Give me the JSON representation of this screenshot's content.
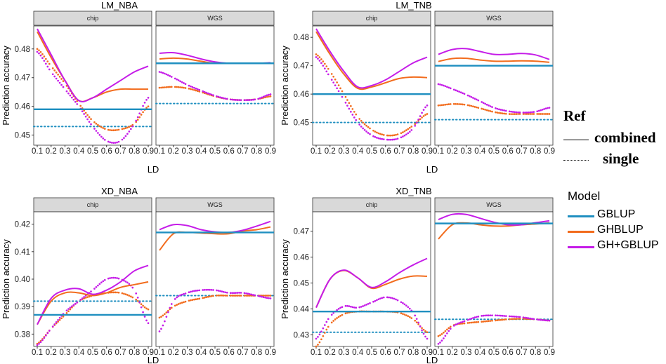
{
  "chart_data": {
    "type": "line",
    "xlabel": "LD",
    "ylabel": "Prediction accuracy",
    "x_ticks": [
      "0.1",
      "0.2",
      "0.3",
      "0.4",
      "0.5",
      "0.6",
      "0.7",
      "0.8",
      "0.9"
    ],
    "ref_legend": {
      "title": "Ref",
      "items": [
        "combined",
        "single"
      ]
    },
    "model_legend": {
      "title": "Model",
      "items": [
        "GBLUP",
        "GHBLUP",
        "GH+GBLUP"
      ]
    },
    "colors": {
      "GBLUP": "#1f8fc0",
      "GHBLUP": "#f26c1d",
      "GH+GBLUP": "#c51ce8"
    },
    "x": [
      0.1,
      0.2,
      0.3,
      0.4,
      0.5,
      0.6,
      0.7,
      0.8,
      0.9
    ],
    "panels": [
      {
        "title": "LM_NBA",
        "ylim": [
          0.4465,
          0.488
        ],
        "yticks": [
          "0.45",
          "0.46",
          "0.47",
          "0.48"
        ],
        "facets": [
          {
            "label": "chip",
            "gblup_combined": 0.459,
            "gblup_single": 0.453,
            "ghblup_combined": [
              0.486,
              0.477,
              0.469,
              0.462,
              0.463,
              0.465,
              0.466,
              0.466,
              0.466
            ],
            "gh_gblup_combined": [
              0.487,
              0.478,
              0.469,
              0.462,
              0.463,
              0.466,
              0.469,
              0.472,
              0.474
            ],
            "ghblup_single": [
              0.48,
              0.474,
              0.468,
              0.461,
              0.455,
              0.452,
              0.452,
              0.454,
              0.46
            ],
            "gh_gblup_single": [
              0.479,
              0.472,
              0.466,
              0.46,
              0.453,
              0.448,
              0.448,
              0.454,
              0.463
            ]
          },
          {
            "label": "WGS",
            "gblup_combined": 0.475,
            "gblup_single": 0.461,
            "ghblup_combined": [
              0.4765,
              0.4768,
              0.4765,
              0.4757,
              0.475,
              0.475,
              0.475,
              0.475,
              0.475
            ],
            "gh_gblup_combined": [
              0.4785,
              0.4787,
              0.4778,
              0.4765,
              0.4755,
              0.475,
              0.475,
              0.475,
              0.4752
            ],
            "ghblup_single": [
              0.4665,
              0.4668,
              0.4663,
              0.465,
              0.4635,
              0.4625,
              0.4622,
              0.4625,
              0.4635
            ],
            "gh_gblup_single": [
              0.472,
              0.47,
              0.4675,
              0.4655,
              0.4637,
              0.4625,
              0.4622,
              0.4625,
              0.4642
            ]
          }
        ]
      },
      {
        "title": "LM_TNB",
        "ylim": [
          0.442,
          0.484
        ],
        "yticks": [
          "0.45",
          "0.46",
          "0.47",
          "0.48"
        ],
        "facets": [
          {
            "label": "chip",
            "gblup_combined": 0.46,
            "gblup_single": 0.45,
            "ghblup_combined": [
              0.482,
              0.474,
              0.467,
              0.462,
              0.4625,
              0.464,
              0.4655,
              0.466,
              0.4658
            ],
            "gh_gblup_combined": [
              0.483,
              0.475,
              0.468,
              0.4625,
              0.463,
              0.465,
              0.468,
              0.471,
              0.473
            ],
            "ghblup_single": [
              0.474,
              0.468,
              0.46,
              0.452,
              0.4475,
              0.4455,
              0.446,
              0.449,
              0.453
            ],
            "gh_gblup_single": [
              0.473,
              0.466,
              0.458,
              0.45,
              0.4455,
              0.444,
              0.4445,
              0.448,
              0.456
            ]
          },
          {
            "label": "WGS",
            "gblup_combined": 0.47,
            "gblup_single": 0.451,
            "ghblup_combined": [
              0.4715,
              0.4725,
              0.4726,
              0.472,
              0.4716,
              0.4716,
              0.4717,
              0.4716,
              0.4712
            ],
            "gh_gblup_combined": [
              0.474,
              0.4757,
              0.476,
              0.475,
              0.474,
              0.474,
              0.4743,
              0.4738,
              0.4722
            ],
            "ghblup_single": [
              0.456,
              0.4565,
              0.4562,
              0.455,
              0.4537,
              0.453,
              0.453,
              0.453,
              0.453
            ],
            "gh_gblup_single": [
              0.4635,
              0.4618,
              0.4598,
              0.4575,
              0.4552,
              0.454,
              0.4535,
              0.4538,
              0.4552
            ]
          }
        ]
      },
      {
        "title": "XD_NBA",
        "ylim": [
          0.3755,
          0.4245
        ],
        "yticks": [
          "0.38",
          "0.39",
          "0.40",
          "0.41",
          "0.42"
        ],
        "facets": [
          {
            "label": "chip",
            "gblup_combined": 0.387,
            "gblup_single": 0.392,
            "ghblup_combined": [
              0.3835,
              0.392,
              0.395,
              0.395,
              0.394,
              0.395,
              0.397,
              0.398,
              0.399
            ],
            "gh_gblup_combined": [
              0.3835,
              0.393,
              0.396,
              0.3965,
              0.3945,
              0.396,
              0.399,
              0.403,
              0.405
            ],
            "ghblup_single": [
              0.3765,
              0.382,
              0.387,
              0.392,
              0.394,
              0.395,
              0.395,
              0.393,
              0.389
            ],
            "gh_gblup_single": [
              0.376,
              0.382,
              0.388,
              0.392,
              0.396,
              0.4,
              0.4,
              0.396,
              0.384
            ]
          },
          {
            "label": "WGS",
            "gblup_combined": 0.417,
            "gblup_single": 0.394,
            "ghblup_combined": [
              0.4105,
              0.4165,
              0.417,
              0.4168,
              0.4165,
              0.4165,
              0.4175,
              0.418,
              0.419
            ],
            "gh_gblup_combined": [
              0.418,
              0.4198,
              0.4195,
              0.418,
              0.4172,
              0.417,
              0.4178,
              0.4193,
              0.421
            ],
            "ghblup_single": [
              0.386,
              0.39,
              0.392,
              0.393,
              0.394,
              0.394,
              0.394,
              0.394,
              0.394
            ],
            "gh_gblup_single": [
              0.381,
              0.392,
              0.395,
              0.396,
              0.396,
              0.395,
              0.395,
              0.394,
              0.393
            ]
          }
        ]
      },
      {
        "title": "XD_TNB",
        "ylim": [
          0.4255,
          0.4775
        ],
        "yticks": [
          "0.43",
          "0.44",
          "0.45",
          "0.46",
          "0.47"
        ],
        "facets": [
          {
            "label": "chip",
            "gblup_combined": 0.439,
            "gblup_single": 0.431,
            "ghblup_combined": [
              0.4405,
              0.4515,
              0.4548,
              0.452,
              0.448,
              0.4495,
              0.4515,
              0.4527,
              0.4526
            ],
            "gh_gblup_combined": [
              0.4405,
              0.4515,
              0.455,
              0.452,
              0.4483,
              0.4505,
              0.454,
              0.457,
              0.4595
            ],
            "ghblup_single": [
              0.4255,
              0.434,
              0.438,
              0.439,
              0.439,
              0.439,
              0.4385,
              0.436,
              0.431
            ],
            "gh_gblup_single": [
              0.4285,
              0.437,
              0.441,
              0.4405,
              0.4425,
              0.4445,
              0.443,
              0.4385,
              0.4285
            ]
          },
          {
            "label": "WGS",
            "gblup_combined": 0.473,
            "gblup_single": 0.436,
            "ghblup_combined": [
              0.467,
              0.4725,
              0.4732,
              0.4725,
              0.472,
              0.472,
              0.4725,
              0.4728,
              0.4732
            ],
            "gh_gblup_combined": [
              0.4745,
              0.4765,
              0.4765,
              0.475,
              0.4735,
              0.4725,
              0.4725,
              0.4733,
              0.474
            ],
            "ghblup_single": [
              0.4295,
              0.4335,
              0.4345,
              0.435,
              0.4355,
              0.436,
              0.4362,
              0.436,
              0.4355
            ],
            "gh_gblup_single": [
              0.4265,
              0.433,
              0.4355,
              0.4372,
              0.4375,
              0.4372,
              0.4368,
              0.436,
              0.4355
            ]
          }
        ]
      }
    ]
  }
}
